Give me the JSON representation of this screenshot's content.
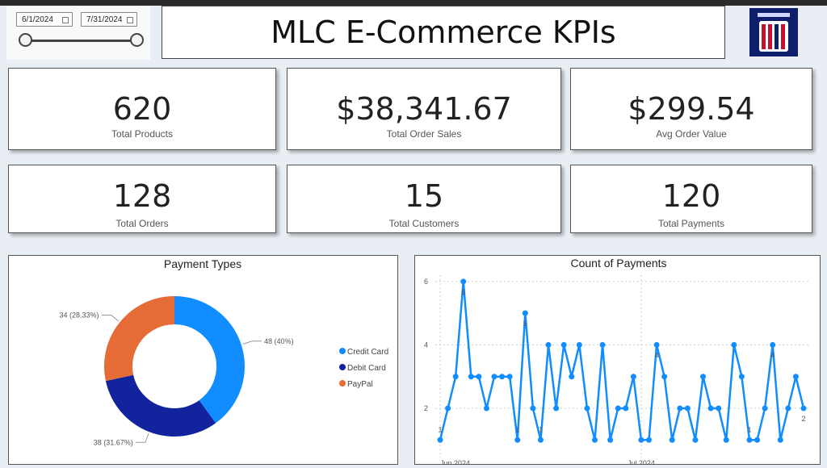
{
  "slicer": {
    "start": "6/1/2024",
    "end": "7/31/2024"
  },
  "header": {
    "title": "MLC E-Commerce KPIs"
  },
  "kpis": [
    {
      "value": "620",
      "label": "Total Products"
    },
    {
      "value": "$38,341.67",
      "label": "Total Order Sales"
    },
    {
      "value": "$299.54",
      "label": "Avg Order Value"
    },
    {
      "value": "128",
      "label": "Total Orders"
    },
    {
      "value": "15",
      "label": "Total Customers"
    },
    {
      "value": "120",
      "label": "Total Payments"
    }
  ],
  "chart_data": [
    {
      "type": "donut",
      "title": "Payment Types",
      "categories": [
        "Credit Card",
        "Debit Card",
        "PayPal"
      ],
      "values": [
        48,
        38,
        34
      ],
      "value_labels": [
        "48 (40%)",
        "38 (31.67%)",
        "34 (28.33%)"
      ],
      "colors": [
        "#118dff",
        "#12239e",
        "#e66c37"
      ]
    },
    {
      "type": "line",
      "title": "Count of Payments",
      "categories": [
        "Jun 2024",
        null,
        null,
        null,
        null,
        null,
        null,
        null,
        null,
        null,
        null,
        null,
        null,
        null,
        null,
        null,
        null,
        null,
        null,
        null,
        null,
        null,
        null,
        null,
        null,
        null,
        "Jul 2024",
        null,
        null,
        null,
        null,
        null,
        null,
        null,
        null,
        null,
        null,
        null,
        null,
        null,
        null,
        null,
        null,
        null,
        null,
        null,
        null,
        null
      ],
      "values": [
        1,
        2,
        3,
        6,
        3,
        3,
        2,
        3,
        3,
        3,
        1,
        5,
        2,
        1,
        4,
        2,
        4,
        3,
        4,
        2,
        1,
        4,
        1,
        2,
        2,
        3,
        1,
        1,
        4,
        3,
        1,
        2,
        2,
        1,
        3,
        2,
        2,
        1,
        4,
        3,
        1,
        1,
        2,
        4,
        1,
        2,
        3,
        2
      ],
      "value_labels": [
        "1",
        null,
        null,
        "6",
        null,
        null,
        null,
        null,
        null,
        null,
        "1",
        "5",
        null,
        "1",
        null,
        null,
        null,
        null,
        null,
        null,
        null,
        null,
        null,
        null,
        null,
        null,
        null,
        null,
        "4",
        null,
        null,
        null,
        null,
        null,
        null,
        null,
        null,
        null,
        null,
        null,
        "1",
        null,
        null,
        "4",
        null,
        null,
        null,
        "2"
      ],
      "color": "#118dff",
      "ylim": [
        0.6,
        6.2
      ],
      "yticks": [
        2,
        4,
        6
      ],
      "grid": true
    }
  ]
}
